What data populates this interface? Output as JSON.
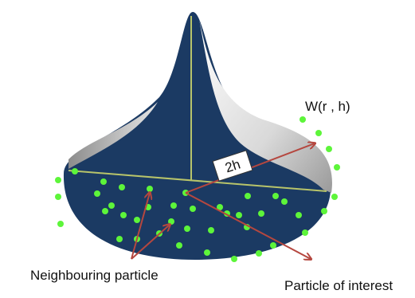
{
  "labels": {
    "kernel": "W(r , h)",
    "radius": "2h",
    "neighbour": "Neighbouring particle",
    "interest": "Particle of interest"
  }
}
